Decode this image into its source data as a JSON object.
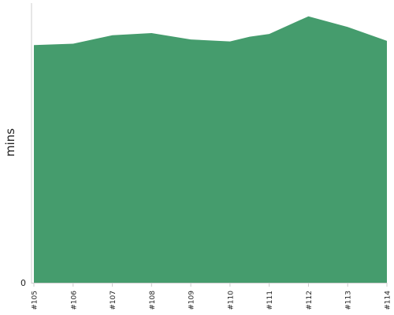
{
  "chart_data": {
    "type": "area",
    "categories": [
      "#105",
      "#106",
      "#107",
      "#108",
      "#109",
      "#110",
      "#111",
      "#112",
      "#113",
      "#114"
    ],
    "series": [
      {
        "values": [
          85.0,
          85.5,
          88.5,
          89.3,
          87.0,
          86.3,
          89.0,
          95.3,
          91.5,
          86.5
        ]
      }
    ],
    "x_points": [
      0,
      1,
      1.5,
      2,
      3,
      4,
      5,
      5.5,
      6,
      7,
      8,
      9
    ],
    "y_points": [
      85.0,
      85.5,
      87.0,
      88.5,
      89.3,
      87.0,
      86.3,
      88.0,
      89.0,
      95.3,
      91.5,
      86.5
    ],
    "ylabel": "mins",
    "xlabel": "",
    "title": "",
    "ylim": [
      0,
      100
    ],
    "y_ticks": [
      "0"
    ],
    "y_tick_values": [
      0
    ],
    "grid": false,
    "colors": {
      "area": "#459c6d",
      "axis": "#cccccc",
      "text": "#222222"
    }
  }
}
